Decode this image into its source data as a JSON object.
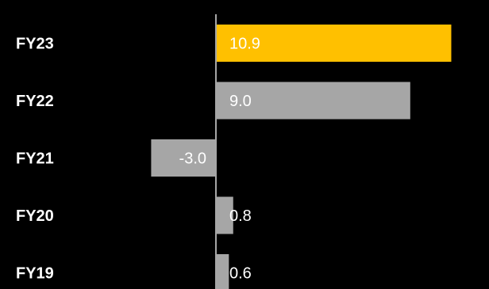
{
  "chart_data": {
    "type": "bar",
    "orientation": "horizontal",
    "categories": [
      "FY23",
      "FY22",
      "FY21",
      "FY20",
      "FY19"
    ],
    "values": [
      10.9,
      9.0,
      -3.0,
      0.8,
      0.6
    ],
    "value_labels": [
      "10.9",
      "9.0",
      "-3.0",
      "0.8",
      "0.6"
    ],
    "title": "",
    "xlabel": "",
    "ylabel": "",
    "xlim": [
      -3.0,
      12.0
    ],
    "grid": false,
    "legend": "none",
    "colors": {
      "background": "#000000",
      "highlight": "#FFC000",
      "default": "#A6A6A6",
      "axis": "#A6A6A6",
      "text": "#FFFFFF"
    },
    "highlight_category": "FY23"
  }
}
